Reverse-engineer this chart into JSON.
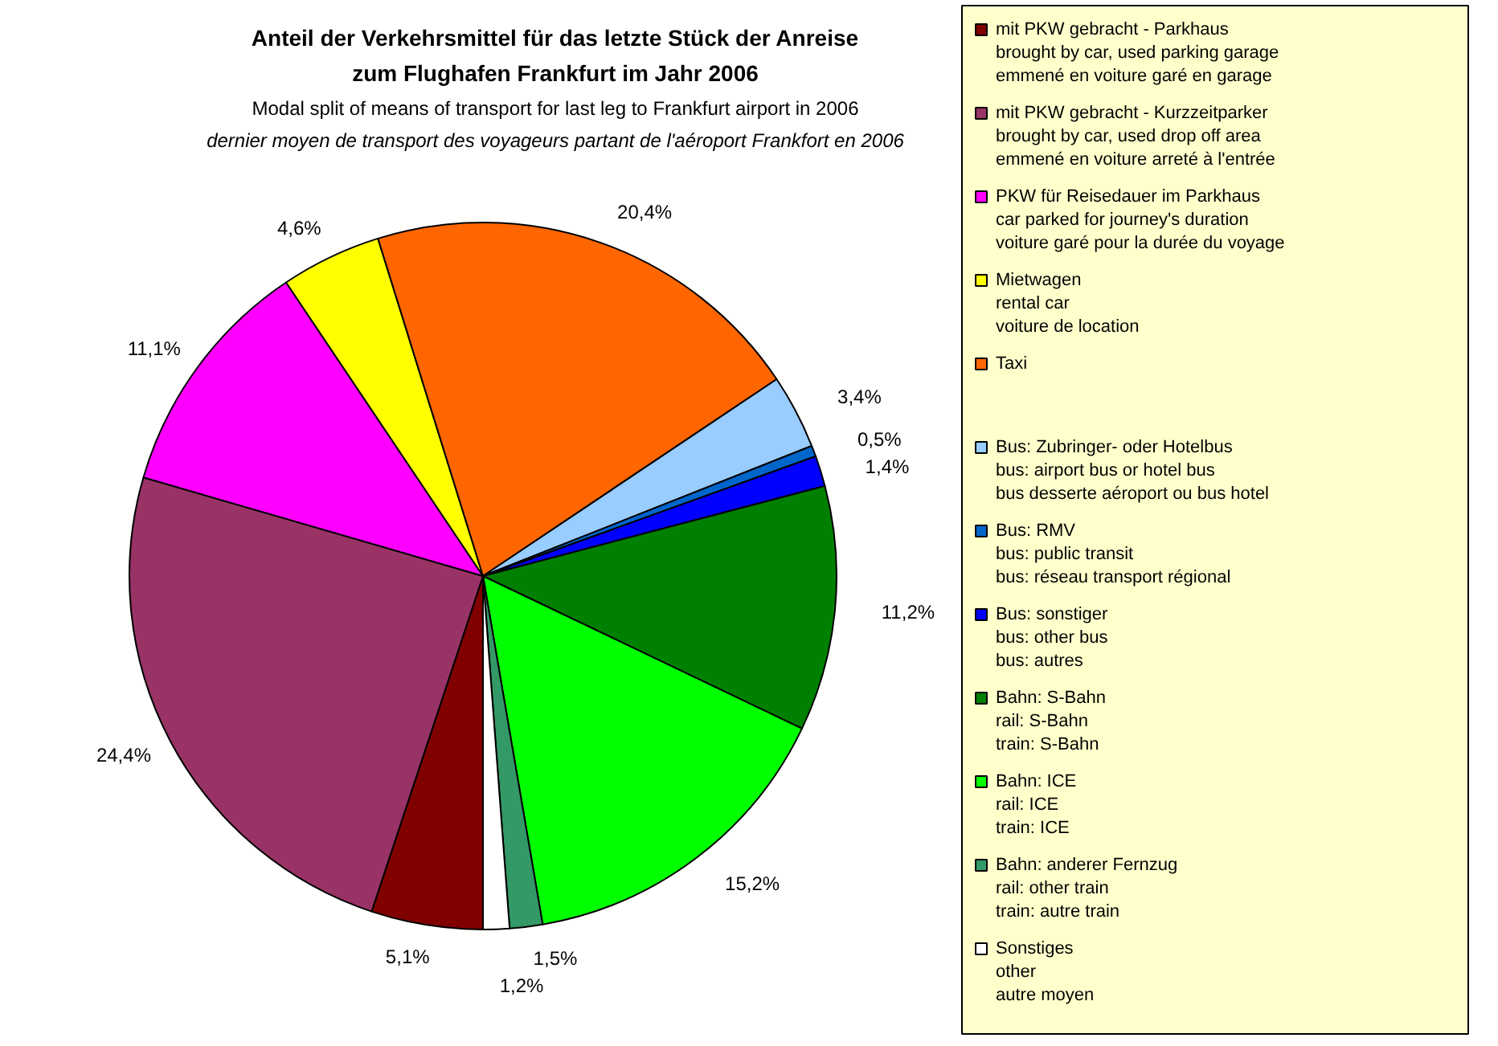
{
  "chart_data": {
    "type": "pie",
    "title": "Anteil der Verkehrsmittel für das letzte Stück der Anreise\nzum Flughafen Frankfurt im Jahr 2006",
    "subtitle": "Modal split of means of transport for last leg to Frankfurt airport in 2006\ndernier moyen de transport des voyageurs partant de l'aéroport Frankfort en 2006",
    "categories": [
      "mit PKW gebracht - Parkhaus\nbrought by car, used parking garage\nemmené en voiture garé en garage",
      "mit PKW gebracht - Kurzzeitparker\nbrought by car, used drop off area\nemmené en voiture arreté à l'entrée",
      "PKW für Reisedauer im Parkhaus\ncar parked for journey's duration\nvoiture garé pour la durée du voyage",
      "Mietwagen\nrental car\nvoiture de location",
      "Taxi",
      "Bus: Zubringer- oder Hotelbus\nbus: airport bus or hotel bus\nbus desserte aéroport ou bus hotel",
      "Bus: RMV\nbus: public transit\nbus: réseau transport régional",
      "Bus: sonstiger\nbus: other bus\nbus: autres",
      "Bahn: S-Bahn\nrail: S-Bahn\ntrain: S-Bahn",
      "Bahn: ICE\nrail: ICE\ntrain: ICE",
      "Bahn: anderer Fernzug\nrail: other train\ntrain: autre train",
      "Sonstiges\nother\nautre moyen"
    ],
    "values": [
      5.1,
      24.4,
      11.1,
      4.6,
      20.4,
      3.4,
      0.5,
      1.4,
      11.2,
      15.2,
      1.5,
      1.2
    ],
    "colors": [
      "#800000",
      "#993366",
      "#ff00ff",
      "#ffff00",
      "#ff6600",
      "#99ccff",
      "#0066cc",
      "#0000ff",
      "#008000",
      "#00ff00",
      "#339966",
      "#ffffff"
    ],
    "value_labels": [
      "5,1%",
      "24,4%",
      "11,1%",
      "4,6%",
      "20,4%",
      "3,4%",
      "0,5%",
      "1,4%",
      "11,2%",
      "15,2%",
      "1,5%",
      "1,2%"
    ],
    "legend": "right"
  }
}
